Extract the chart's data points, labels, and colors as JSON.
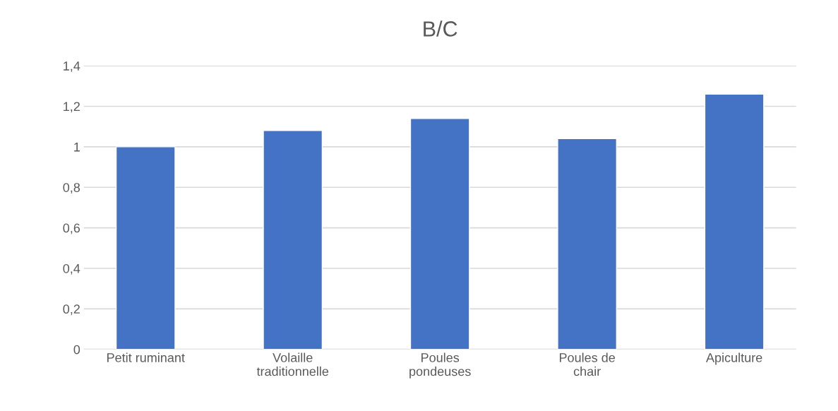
{
  "chart_data": {
    "type": "bar",
    "title": "B/C",
    "categories": [
      "Petit ruminant",
      "Volaille\ntraditionnelle",
      "Poules\npondeuses",
      "Poules de\nchair",
      "Apiculture"
    ],
    "values": [
      1.0,
      1.08,
      1.14,
      1.04,
      1.26
    ],
    "color": "#4472c4",
    "ylim": [
      0,
      1.4
    ],
    "yticks": [
      {
        "value": 0,
        "label": "0"
      },
      {
        "value": 0.2,
        "label": "0,2"
      },
      {
        "value": 0.4,
        "label": "0,4"
      },
      {
        "value": 0.6,
        "label": "0,6"
      },
      {
        "value": 0.8,
        "label": "0,8"
      },
      {
        "value": 1,
        "label": "1"
      },
      {
        "value": 1.2,
        "label": "1,2"
      },
      {
        "value": 1.4,
        "label": "1,4"
      }
    ],
    "grid": "y"
  }
}
